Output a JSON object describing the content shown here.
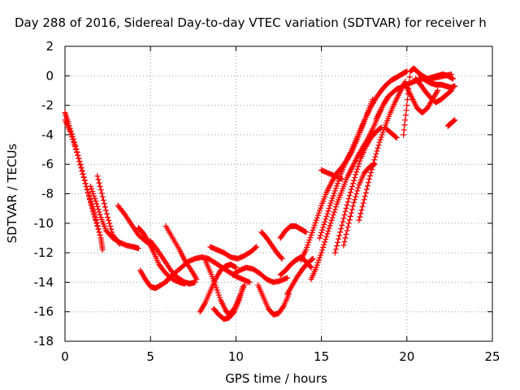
{
  "chart_data": {
    "type": "scatter",
    "title": "Day 288 of 2016, Sidereal Day-to-day VTEC variation (SDTVAR) for receiver h",
    "xlabel": "GPS time / hours",
    "ylabel": "SDTVAR / TECUs",
    "xlim": [
      0,
      25
    ],
    "ylim": [
      -18,
      2
    ],
    "xticks": [
      0,
      5,
      10,
      15,
      20,
      25
    ],
    "yticks": [
      2,
      0,
      -2,
      -4,
      -6,
      -8,
      -10,
      -12,
      -14,
      -16,
      -18
    ],
    "grid": true,
    "marker": "plus",
    "color": "#ff0000",
    "series": [
      {
        "x": [
          0.0,
          0.2,
          0.5,
          0.8,
          1.1,
          1.4,
          1.7,
          2.0
        ],
        "y": [
          -2.5,
          -3.2,
          -4.3,
          -5.6,
          -6.9,
          -8.1,
          -9.3,
          -10.6
        ]
      },
      {
        "x": [
          0.0,
          0.3,
          0.6,
          0.9,
          1.2,
          1.5,
          1.8,
          2.1,
          2.2
        ],
        "y": [
          -3.0,
          -3.8,
          -4.8,
          -6.0,
          -7.3,
          -8.6,
          -9.8,
          -11.0,
          -11.8
        ]
      },
      {
        "x": [
          1.5,
          1.8,
          2.1,
          2.4,
          2.8,
          3.2,
          3.6,
          4.0,
          4.3
        ],
        "y": [
          -7.5,
          -8.5,
          -9.6,
          -10.5,
          -11.0,
          -11.3,
          -11.5,
          -11.6,
          -11.7
        ]
      },
      {
        "x": [
          1.9,
          2.2,
          2.5,
          2.8,
          3.2
        ],
        "y": [
          -6.8,
          -8.2,
          -9.6,
          -10.8,
          -11.4
        ]
      },
      {
        "x": [
          3.1,
          3.5,
          3.9,
          4.3,
          4.7,
          5.0
        ],
        "y": [
          -8.8,
          -9.4,
          -10.1,
          -10.8,
          -11.2,
          -11.4
        ]
      },
      {
        "x": [
          4.3,
          4.6,
          4.9,
          5.2,
          5.5,
          5.9,
          6.3,
          6.7,
          7.0
        ],
        "y": [
          -10.3,
          -10.7,
          -11.3,
          -12.0,
          -12.8,
          -13.4,
          -13.8,
          -14.0,
          -14.1
        ]
      },
      {
        "x": [
          5.0,
          5.4,
          5.8,
          6.2,
          6.6,
          7.0,
          7.3,
          7.6
        ],
        "y": [
          -11.2,
          -11.8,
          -12.5,
          -13.2,
          -13.7,
          -14.0,
          -14.1,
          -14.0
        ]
      },
      {
        "x": [
          4.4,
          4.7,
          5.0,
          5.3,
          5.6,
          6.0
        ],
        "y": [
          -13.2,
          -13.8,
          -14.3,
          -14.4,
          -14.2,
          -13.9
        ]
      },
      {
        "x": [
          5.9,
          6.3,
          6.7,
          7.0,
          7.4,
          7.7
        ],
        "y": [
          -10.2,
          -11.0,
          -11.8,
          -12.5,
          -13.2,
          -13.8
        ]
      },
      {
        "x": [
          6.0,
          6.4,
          6.8,
          7.2,
          7.6,
          8.0,
          8.4,
          8.8,
          9.2,
          9.6,
          10.0,
          10.4,
          10.8
        ],
        "y": [
          -13.8,
          -13.4,
          -13.0,
          -12.6,
          -12.4,
          -12.3,
          -12.4,
          -12.7,
          -13.0,
          -13.3,
          -13.6,
          -13.8,
          -14.0
        ]
      },
      {
        "x": [
          7.9,
          8.2,
          8.5,
          8.8,
          9.1,
          9.4,
          9.7,
          10.0
        ],
        "y": [
          -16.0,
          -15.4,
          -14.6,
          -13.8,
          -13.2,
          -12.9,
          -12.8,
          -13.0
        ]
      },
      {
        "x": [
          8.2,
          8.5,
          8.8,
          9.1,
          9.4,
          9.6,
          9.9,
          10.2,
          10.5
        ],
        "y": [
          -12.5,
          -13.3,
          -14.2,
          -15.2,
          -15.9,
          -16.2,
          -15.8,
          -15.0,
          -14.2
        ]
      },
      {
        "x": [
          8.7,
          9.0,
          9.3,
          9.6,
          9.9,
          10.2,
          10.4
        ],
        "y": [
          -15.8,
          -16.2,
          -16.5,
          -16.4,
          -16.0,
          -15.2,
          -14.3
        ]
      },
      {
        "x": [
          8.5,
          8.9,
          9.3,
          9.7,
          10.1,
          10.5,
          10.9,
          11.2
        ],
        "y": [
          -11.6,
          -11.8,
          -12.0,
          -12.3,
          -12.4,
          -12.2,
          -11.9,
          -11.6
        ]
      },
      {
        "x": [
          9.8,
          10.2,
          10.6,
          11.0,
          11.4,
          11.8,
          12.2,
          12.6,
          13.0
        ],
        "y": [
          -13.5,
          -13.2,
          -13.0,
          -13.1,
          -13.4,
          -13.8,
          -14.0,
          -13.9,
          -13.7
        ]
      },
      {
        "x": [
          11.3,
          11.6,
          11.9,
          12.2,
          12.5,
          12.8,
          13.1
        ],
        "y": [
          -14.2,
          -15.0,
          -15.8,
          -16.2,
          -16.1,
          -15.6,
          -14.8
        ]
      },
      {
        "x": [
          11.5,
          11.8,
          12.1,
          12.4,
          12.7
        ],
        "y": [
          -10.6,
          -11.0,
          -11.5,
          -12.0,
          -12.4
        ]
      },
      {
        "x": [
          12.6,
          12.9,
          13.2,
          13.5,
          13.8,
          14.1,
          14.4
        ],
        "y": [
          -13.5,
          -13.2,
          -12.8,
          -12.5,
          -12.3,
          -12.6,
          -13.0
        ]
      },
      {
        "x": [
          12.6,
          12.9,
          13.2,
          13.5,
          13.8,
          14.1
        ],
        "y": [
          -11.0,
          -10.5,
          -10.2,
          -10.2,
          -10.4,
          -10.6
        ]
      },
      {
        "x": [
          13.0,
          13.3,
          13.6,
          13.9,
          14.2,
          14.5
        ],
        "y": [
          -14.8,
          -14.2,
          -13.6,
          -13.1,
          -12.7,
          -12.4
        ]
      },
      {
        "x": [
          13.8,
          14.1,
          14.4,
          14.7,
          15.0,
          15.3,
          15.6,
          15.9,
          16.2,
          16.5,
          16.8,
          17.1,
          17.4,
          17.7,
          18.0
        ],
        "y": [
          -12.5,
          -11.8,
          -10.8,
          -9.8,
          -8.8,
          -7.9,
          -7.2,
          -6.6,
          -6.2,
          -5.7,
          -5.1,
          -4.3,
          -3.4,
          -2.5,
          -1.6
        ]
      },
      {
        "x": [
          14.4,
          14.7,
          15.0,
          15.3,
          15.6,
          15.9,
          16.2,
          16.5,
          16.8,
          17.1,
          17.4,
          17.7,
          18.0,
          18.3,
          18.6,
          18.9
        ],
        "y": [
          -13.8,
          -13.0,
          -12.0,
          -10.9,
          -9.8,
          -8.7,
          -7.8,
          -6.9,
          -6.2,
          -5.5,
          -4.9,
          -4.3,
          -3.6,
          -2.8,
          -2.0,
          -1.4
        ]
      },
      {
        "x": [
          14.9,
          15.2,
          15.5,
          15.8,
          16.1,
          16.4,
          16.7,
          17.0,
          17.3,
          17.6,
          17.9,
          18.2,
          18.5,
          18.8,
          19.1,
          19.4,
          19.7,
          20.0
        ],
        "y": [
          -11.0,
          -9.9,
          -8.8,
          -7.8,
          -6.8,
          -5.9,
          -5.2,
          -4.4,
          -3.6,
          -2.8,
          -2.1,
          -1.5,
          -1.0,
          -0.6,
          -0.3,
          -0.1,
          0.1,
          0.3
        ]
      },
      {
        "x": [
          15.0,
          15.4,
          15.8,
          16.2
        ],
        "y": [
          -6.4,
          -6.6,
          -6.8,
          -7.0
        ]
      },
      {
        "x": [
          15.8,
          16.1,
          16.4,
          16.7,
          17.0,
          17.3,
          17.6,
          17.9,
          18.2,
          18.5
        ],
        "y": [
          -12.0,
          -10.6,
          -9.2,
          -7.9,
          -6.7,
          -5.6,
          -4.8,
          -4.2,
          -3.8,
          -3.5
        ]
      },
      {
        "x": [
          16.3,
          16.6,
          16.9,
          17.2,
          17.5,
          17.8,
          18.1
        ],
        "y": [
          -11.5,
          -10.0,
          -8.6,
          -7.4,
          -6.6,
          -6.2,
          -6.0
        ]
      },
      {
        "x": [
          17.2,
          17.5,
          17.8,
          18.1,
          18.4,
          18.7,
          19.0,
          19.3,
          19.6,
          19.9
        ],
        "y": [
          -9.8,
          -8.4,
          -7.0,
          -5.7,
          -4.5,
          -3.5,
          -2.6,
          -1.8,
          -1.1,
          -0.4
        ]
      },
      {
        "x": [
          18.2,
          18.6,
          19.0,
          19.4,
          19.8,
          20.2,
          20.6,
          21.0,
          21.4,
          21.8,
          22.2,
          22.6
        ],
        "y": [
          -2.9,
          -2.0,
          -1.3,
          -0.9,
          -0.7,
          -0.5,
          -0.3,
          -0.2,
          -0.2,
          -0.1,
          0.0,
          0.1
        ]
      },
      {
        "x": [
          18.8,
          19.1,
          19.4
        ],
        "y": [
          -3.6,
          -3.9,
          -4.2
        ]
      },
      {
        "x": [
          19.8,
          20.0,
          20.2,
          20.4,
          20.6,
          20.9,
          21.2,
          21.5,
          21.8,
          22.1,
          22.4,
          22.7
        ],
        "y": [
          -4.0,
          -2.0,
          0.3,
          0.5,
          0.3,
          0.0,
          -0.2,
          -0.1,
          0.0,
          0.1,
          0.0,
          -0.2
        ]
      },
      {
        "x": [
          20.0,
          20.3,
          20.6,
          20.9,
          21.2,
          21.5,
          21.8
        ],
        "y": [
          -0.8,
          -1.5,
          -2.2,
          -2.5,
          -2.2,
          -1.6,
          -1.0
        ]
      },
      {
        "x": [
          20.5,
          20.8,
          21.1,
          21.4,
          21.7,
          22.0,
          22.3,
          22.6
        ],
        "y": [
          -0.2,
          -0.6,
          -1.1,
          -1.5,
          -1.8,
          -1.6,
          -1.3,
          -1.0
        ]
      },
      {
        "x": [
          20.8,
          21.1,
          21.4,
          21.7,
          22.0,
          22.3,
          22.6,
          22.8
        ],
        "y": [
          0.0,
          -0.3,
          -0.5,
          -0.6,
          -0.6,
          -0.7,
          -0.8,
          -0.7
        ]
      },
      {
        "x": [
          22.4,
          22.6,
          22.8
        ],
        "y": [
          -3.4,
          -3.2,
          -3.0
        ]
      }
    ]
  }
}
